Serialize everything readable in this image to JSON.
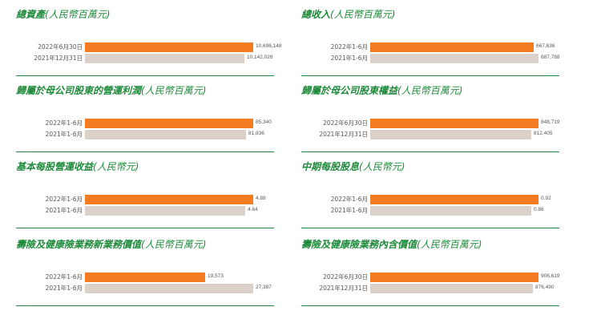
{
  "colors": {
    "current": "#f47b20",
    "prior": "#d9d1ca",
    "accent": "#1f8a3b"
  },
  "unit_million": "(人民幣百萬元)",
  "unit_yuan": "(人民幣元)",
  "chart_data": [
    {
      "type": "bar",
      "orientation": "horizontal",
      "title": "總資產",
      "unit": "(人民幣百萬元)",
      "categories": [
        "2022年6月30日",
        "2021年12月31日"
      ],
      "values": [
        10696148,
        10142026
      ],
      "value_labels": [
        "10,696,148",
        "10,142,026"
      ]
    },
    {
      "type": "bar",
      "orientation": "horizontal",
      "title": "總收入",
      "unit": "(人民幣百萬元)",
      "categories": [
        "2022年1-6月",
        "2021年1-6月"
      ],
      "values": [
        667636,
        687788
      ],
      "value_labels": [
        "667,636",
        "687,788"
      ]
    },
    {
      "type": "bar",
      "orientation": "horizontal",
      "title": "歸屬於母公司股東的營運利潤",
      "unit": "(人民幣百萬元)",
      "categories": [
        "2022年1-6月",
        "2021年1-6月"
      ],
      "values": [
        85340,
        81836
      ],
      "value_labels": [
        "85,340",
        "81,836"
      ]
    },
    {
      "type": "bar",
      "orientation": "horizontal",
      "title": "歸屬於母公司股東權益",
      "unit": "(人民幣百萬元)",
      "categories": [
        "2022年6月30日",
        "2021年12月31日"
      ],
      "values": [
        848719,
        812405
      ],
      "value_labels": [
        "848,719",
        "812,405"
      ]
    },
    {
      "type": "bar",
      "orientation": "horizontal",
      "title": "基本每股營運收益",
      "unit": "(人民幣元)",
      "categories": [
        "2022年1-6月",
        "2021年1-6月"
      ],
      "values": [
        4.88,
        4.64
      ],
      "value_labels": [
        "4.88",
        "4.64"
      ]
    },
    {
      "type": "bar",
      "orientation": "horizontal",
      "title": "中期每股股息",
      "unit": "(人民幣元)",
      "categories": [
        "2022年1-6月",
        "2021年1-6月"
      ],
      "values": [
        0.92,
        0.88
      ],
      "value_labels": [
        "0.92",
        "0.88"
      ]
    },
    {
      "type": "bar",
      "orientation": "horizontal",
      "title": "壽險及健康險業務新業務價值",
      "unit": "(人民幣百萬元)",
      "categories": [
        "2022年1-6月",
        "2021年1-6月"
      ],
      "values": [
        19573,
        27387
      ],
      "value_labels": [
        "19,573",
        "27,387"
      ]
    },
    {
      "type": "bar",
      "orientation": "horizontal",
      "title": "壽險及健康險業務內含價值",
      "unit": "(人民幣百萬元)",
      "categories": [
        "2022年6月30日",
        "2021年12月31日"
      ],
      "values": [
        906619,
        876490
      ],
      "value_labels": [
        "906,619",
        "876,490"
      ]
    }
  ]
}
